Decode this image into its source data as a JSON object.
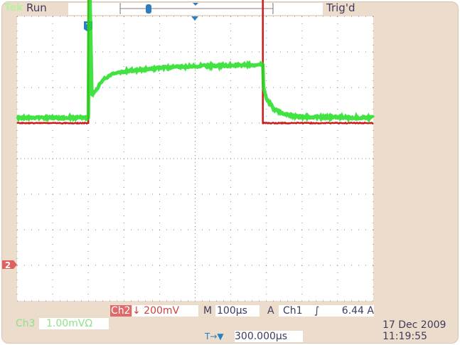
{
  "header": {
    "brand": "Tek",
    "acq_state": "Run",
    "trigger_status": "Trig'd"
  },
  "footer": {
    "ch2_label": "Ch2",
    "ch2_scale": "↓ 200mV",
    "timebase_label": "M",
    "timebase": "100µs",
    "trigger_label": "A",
    "trigger_source": "Ch1",
    "trigger_slope_icon": "rising-edge",
    "trigger_level": "6.44 A",
    "ch3_label": "Ch3",
    "ch3_scale": "1.00mVΩ",
    "delay_icon": "T→▼",
    "delay": "300.000µs",
    "date": "17 Dec  2009",
    "time": "11:19:55"
  },
  "colors": {
    "ch2": "#cc1a1a",
    "ch3": "#22dd22",
    "marker": "#2a7fc0",
    "frame": "#ecdccb"
  },
  "chart_data": {
    "type": "line",
    "grid": true,
    "x_unit": "µs relative to trigger",
    "xlim": [
      -200,
      800
    ],
    "divisions": {
      "x": 10,
      "y": 8
    },
    "trigger_marker_label": "T",
    "series": [
      {
        "channel": "Ch2",
        "marker_label": "2",
        "unit": "V",
        "ylim": [
          -1.0,
          0.6
        ],
        "points": [
          [
            -200,
            0
          ],
          [
            0,
            0
          ],
          [
            0,
            1.0
          ],
          [
            490,
            1.0
          ],
          [
            490,
            0
          ],
          [
            800,
            0
          ]
        ]
      },
      {
        "channel": "Ch3",
        "unit": "mV",
        "ylim": [
          -5.0,
          3.0
        ],
        "points": [
          [
            -200,
            0.15
          ],
          [
            0,
            0.15
          ],
          [
            3,
            4.4
          ],
          [
            10,
            0.8
          ],
          [
            20,
            0.9
          ],
          [
            40,
            1.2
          ],
          [
            60,
            1.35
          ],
          [
            80,
            1.42
          ],
          [
            120,
            1.48
          ],
          [
            200,
            1.55
          ],
          [
            300,
            1.6
          ],
          [
            400,
            1.62
          ],
          [
            490,
            1.65
          ],
          [
            492,
            1.0
          ],
          [
            500,
            0.7
          ],
          [
            520,
            0.4
          ],
          [
            550,
            0.25
          ],
          [
            600,
            0.17
          ],
          [
            800,
            0.15
          ]
        ]
      }
    ]
  }
}
